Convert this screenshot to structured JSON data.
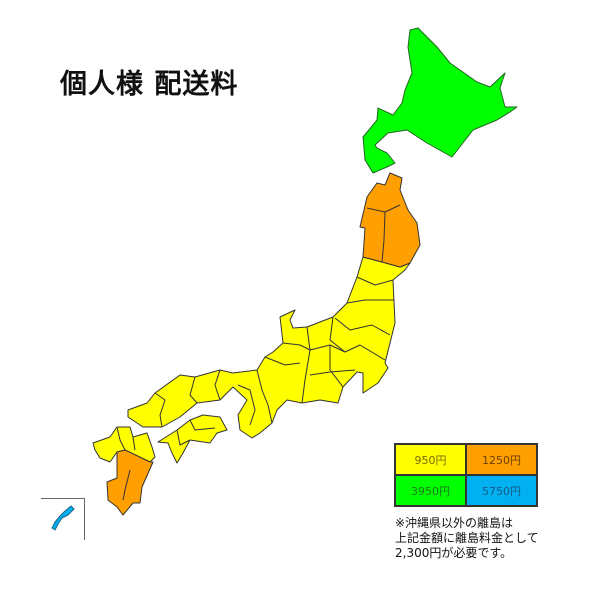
{
  "title": "個人様 配送料",
  "colors": {
    "yellow": "#ffff00",
    "orange": "#ff9f00",
    "green": "#00ff00",
    "blue": "#00b0f0"
  },
  "regions": [
    {
      "name": "北海道",
      "rate": "3950円",
      "color": "#00ff00"
    },
    {
      "name": "北東北(青森・秋田・岩手)",
      "rate": "1250円",
      "color": "#ff9f00"
    },
    {
      "name": "本州・四国・北九州",
      "rate": "950円",
      "color": "#ffff00"
    },
    {
      "name": "南九州(熊本・宮崎・鹿児島)",
      "rate": "1250円",
      "color": "#ff9f00"
    },
    {
      "name": "沖縄",
      "rate": "5750円",
      "color": "#00b0f0"
    }
  ],
  "legend": [
    {
      "label": "950円",
      "color": "#ffff00"
    },
    {
      "label": "1250円",
      "color": "#ff9f00"
    },
    {
      "label": "3950円",
      "color": "#00ff00"
    },
    {
      "label": "5750円",
      "color": "#00b0f0"
    }
  ],
  "note": [
    "※沖縄県以外の離島は",
    "上記金額に離島料金として",
    "2,300円が必要です。"
  ]
}
